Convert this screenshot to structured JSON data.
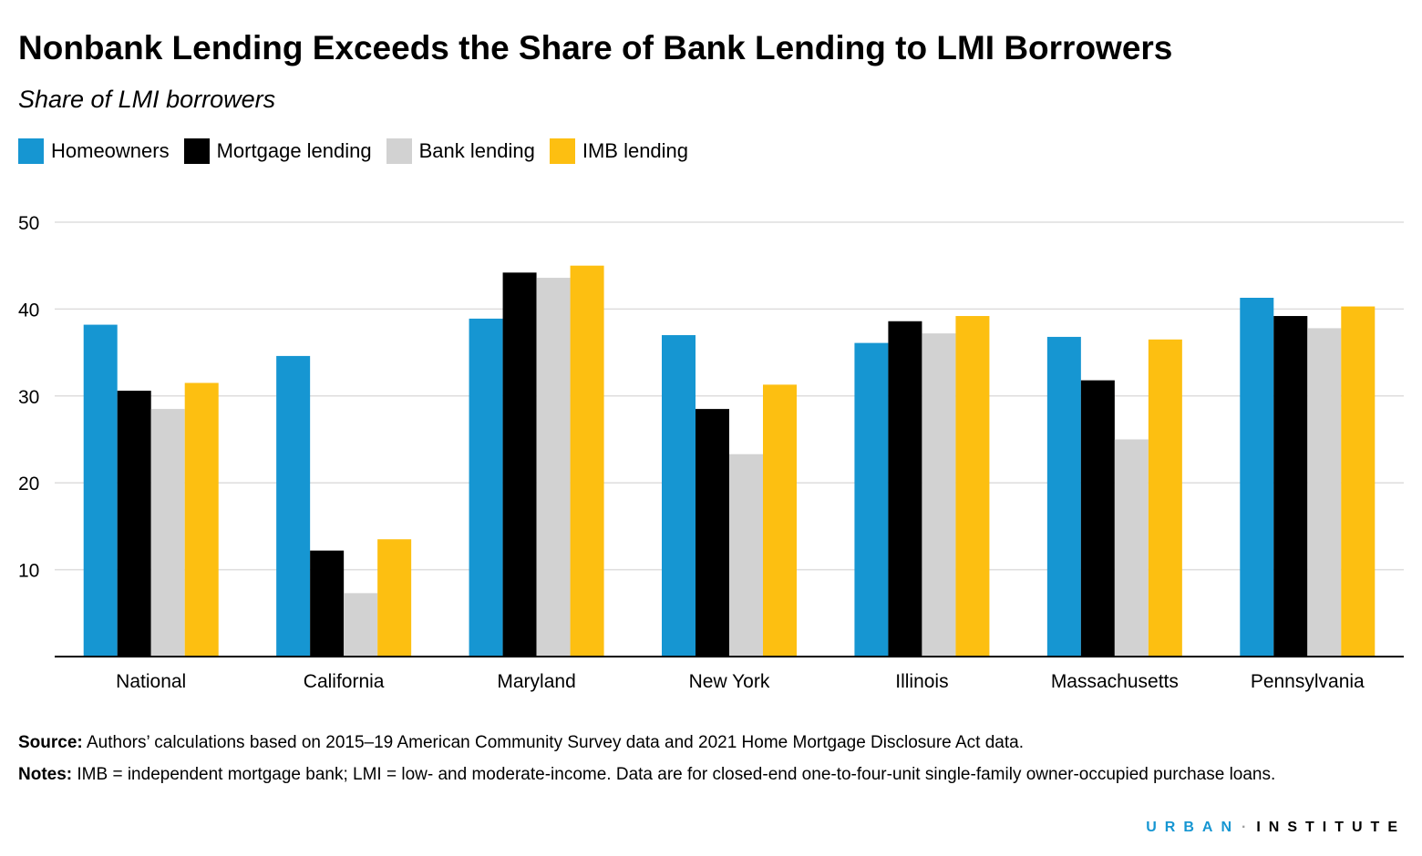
{
  "title": "Nonbank Lending Exceeds the Share of Bank Lending to LMI Borrowers",
  "subtitle": "Share of LMI borrowers",
  "legend": [
    {
      "label": "Homeowners",
      "color": "#1696d2"
    },
    {
      "label": "Mortgage lending",
      "color": "#000000"
    },
    {
      "label": "Bank lending",
      "color": "#d2d2d2"
    },
    {
      "label": "IMB lending",
      "color": "#fdbf11"
    }
  ],
  "chart_data": {
    "type": "bar",
    "title": "Nonbank Lending Exceeds the Share of Bank Lending to LMI Borrowers",
    "subtitle": "Share of LMI borrowers",
    "xlabel": "",
    "ylabel": "",
    "ylim": [
      0,
      50
    ],
    "yticks": [
      10,
      20,
      30,
      40,
      50
    ],
    "grid": true,
    "legend_position": "top-left",
    "categories": [
      "National",
      "California",
      "Maryland",
      "New York",
      "Illinois",
      "Massachusetts",
      "Pennsylvania"
    ],
    "series": [
      {
        "name": "Homeowners",
        "color": "#1696d2",
        "values": [
          38.2,
          34.6,
          38.9,
          37.0,
          36.1,
          36.8,
          41.3
        ]
      },
      {
        "name": "Mortgage lending",
        "color": "#000000",
        "values": [
          30.6,
          12.2,
          44.2,
          28.5,
          38.6,
          31.8,
          39.2
        ]
      },
      {
        "name": "Bank lending",
        "color": "#d2d2d2",
        "values": [
          28.5,
          7.3,
          43.6,
          23.3,
          37.2,
          25.0,
          37.8
        ]
      },
      {
        "name": "IMB lending",
        "color": "#fdbf11",
        "values": [
          31.5,
          13.5,
          45.0,
          31.3,
          39.2,
          36.5,
          40.3
        ]
      }
    ]
  },
  "source": {
    "label": "Source:",
    "text": "Authors’ calculations based on 2015–19 American Community Survey data and 2021 Home Mortgage Disclosure Act data."
  },
  "notes": {
    "label": "Notes:",
    "text": "IMB = independent mortgage bank; LMI = low- and moderate-income. Data are for closed-end one-to-four-unit single-family owner-occupied purchase loans."
  },
  "brand": {
    "part1": "URBAN",
    "separator": "·",
    "part2": "INSTITUTE"
  }
}
